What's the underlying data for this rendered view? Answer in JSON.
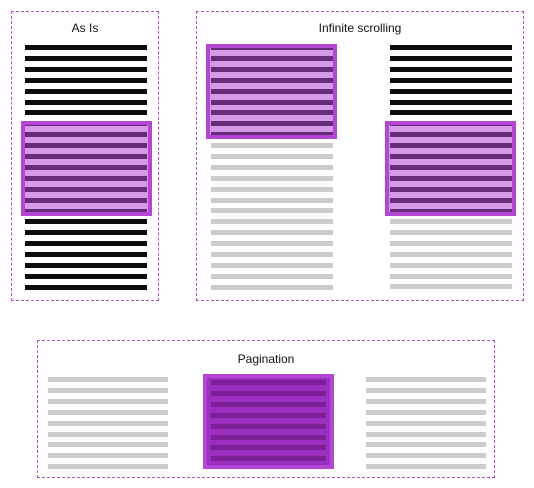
{
  "panels": {
    "as_is": {
      "title": "As Is"
    },
    "infinite_scrolling": {
      "title": "Infinite scrolling"
    },
    "pagination": {
      "title": "Pagination"
    }
  },
  "colors": {
    "frame_border": "#b04fc6",
    "loaded_line": "#0d0d0d",
    "unloaded_line": "#cccccc",
    "viewport": "#b347d3",
    "page_line": "#7b1e98"
  }
}
